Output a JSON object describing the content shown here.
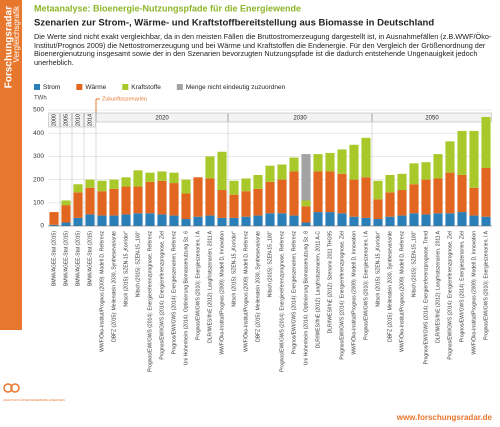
{
  "chart_data": {
    "type": "stacked_bar",
    "kicker": "Metaanalyse: Bioenergie-Nutzungspfade für die Energiewende",
    "title": "Szenarien zur Strom-, Wärme- und Kraftstoffbereitstellung aus Biomasse in Deutschland",
    "description": "Die Werte sind nicht exakt vergleichbar, da in den meisten Fällen die Bruttostromerzeugung dargestellt ist, in Ausnahmefällen (z.B.WWF/Öko-Institut/Prognos 2009) die Nettostromerzeugung und bei Wärme und Kraftstoffen die Endenergie. Für den Vergleich der Größenordnung der Bioenergienutzung insgesamt sowie der in den Szenarien bevorzugten Nutzungspfade ist die dadurch entstehende Ungenauigkeit jedoch unerheblich.",
    "sidebar_title": "Forschungsradar",
    "sidebar_subtitle": "Vergleichsgrafik",
    "logo_text": "AGENTUR FÜR ERNEUERBARE ENERGIEN",
    "footer": "www.forschungsradar.de",
    "y_label": "TWh",
    "annotation": "Zukunftsszenarien",
    "ylim": [
      0,
      500
    ],
    "yticks": [
      0,
      100,
      200,
      300,
      400,
      500
    ],
    "grid": true,
    "groups": [
      {
        "label": "2000",
        "count": 1
      },
      {
        "label": "2005",
        "count": 1
      },
      {
        "label": "2010",
        "count": 1
      },
      {
        "label": "2014",
        "count": 1
      },
      {
        "label": "2020",
        "count": 11
      },
      {
        "label": "2030",
        "count": 12
      },
      {
        "label": "2050",
        "count": 10
      }
    ],
    "categories": [
      "BMWi/AGEE-Stat (2015)",
      "BMWi/AGEE-Stat (2015)",
      "BMWi/AGEE-Stat (2015)",
      "BMWi/AGEE-Stat (2015)",
      "WWF/Öko-Institut/Prognos (2009): Modell D, Referenz",
      "DBFZ (2015): Meilenstein 2030, Synthesevariante",
      "Nitsch (2015): SZEN-15 „Korridor“",
      "Nitsch (2015): SZEN-15 „100“",
      "Prognos/EWI/GWS (2014): Energiereferenzprognose, Referenz",
      "Prognos/EWI/GWS (2014): Energiereferenzprognose, Ziel",
      "Prognos/EWI/GWS (2014): Energieszenarien, Referenz",
      "Uni Hohenheim (2014): Optimierung Biomassenutzung Sz. 6",
      "Prognos/EWI/GWS (2010): Energieszenarien, I A",
      "DLR/IWES/IfnE (2012): Langfristszenarien, 2011 A",
      "WWF/Öko-Institut/Prognos (2009): Modell D, Innovation",
      "Nitsch (2015): SZEN-15 „Korridor“",
      "WWF/Öko-Institut/Prognos (2009): Modell D, Referenz",
      "DBFZ (2015): Meilenstein 2030, Synthesevariante",
      "Nitsch (2015): SZEN-15 „100“",
      "Prognos/EWI/GWS (2014): Energiereferenzprognose, Referenz",
      "Prognos/EWI/GWS (2014): Energieszenarien, Referenz",
      "Uni Hohenheim (2014): Optimierung Biomassenutzung Sz. 8",
      "DLR/IWES/IfnE (2012): Langfristszenarien, 2011 A-C",
      "DLR/IWES/IfnE (2012): Szenario 2011 THG95",
      "Prognos/EWI/GWS (2014): Energiereferenzprognose, Ziel",
      "WWF/Öko-Institut/Prognos (2009): Modell D, Innovation",
      "Prognos/EWI/GWS (2010): Energieszenarien, I A",
      "Nitsch (2015): SZEN-15 „Korridor“",
      "DBFZ (2015): Meilenstein 2030, Synthesevariante",
      "WWF/Öko-Institut/Prognos (2009): Modell D, Referenz",
      "Nitsch (2015): SZEN-15 „100“",
      "Prognos/EWI/GWS (2014): Energiereferenzprognose, Trend",
      "DLR/IWES/IfnE (2012): Langfristszenarien, 2011 A",
      "Prognos/EWI/GWS (2014): Energiereferenzprognose, Ziel",
      "Prognos/EWI/GWS (2014): Energieszenarien, Ziel",
      "WWF/Öko-Institut/Prognos (2009): Modell D, Innovation",
      "Prognos/EWI/GWS (2010): Energieszenarien, I A"
    ],
    "series": [
      {
        "name": "Strom",
        "color": "#2b7fb8",
        "values": [
          5,
          15,
          35,
          50,
          45,
          45,
          50,
          55,
          55,
          50,
          45,
          30,
          40,
          45,
          35,
          35,
          40,
          45,
          55,
          55,
          45,
          15,
          60,
          60,
          55,
          40,
          35,
          30,
          40,
          45,
          55,
          50,
          55,
          55,
          60,
          45,
          40
        ]
      },
      {
        "name": "Wärme",
        "color": "#e2661f",
        "values": [
          55,
          75,
          110,
          115,
          105,
          115,
          120,
          115,
          135,
          145,
          140,
          110,
          170,
          160,
          120,
          100,
          110,
          115,
          135,
          145,
          190,
          70,
          175,
          175,
          170,
          160,
          175,
          85,
          105,
          110,
          125,
          150,
          150,
          175,
          160,
          120,
          210
        ]
      },
      {
        "name": "Kraftstoffe",
        "color": "#a9c92b",
        "values": [
          0,
          20,
          35,
          35,
          45,
          40,
          40,
          70,
          40,
          40,
          45,
          60,
          0,
          95,
          165,
          60,
          55,
          60,
          70,
          65,
          60,
          25,
          75,
          80,
          105,
          150,
          170,
          80,
          75,
          70,
          90,
          75,
          105,
          135,
          190,
          245,
          220
        ]
      },
      {
        "name": "Menge nicht eindeutig zuzuordnen",
        "color": "#a3a3a3",
        "values": [
          null,
          null,
          null,
          null,
          null,
          null,
          null,
          null,
          null,
          null,
          null,
          null,
          null,
          null,
          null,
          null,
          null,
          null,
          null,
          null,
          null,
          200,
          null,
          null,
          null,
          null,
          null,
          null,
          null,
          null,
          null,
          null,
          null,
          null,
          null,
          null,
          null
        ]
      }
    ]
  }
}
